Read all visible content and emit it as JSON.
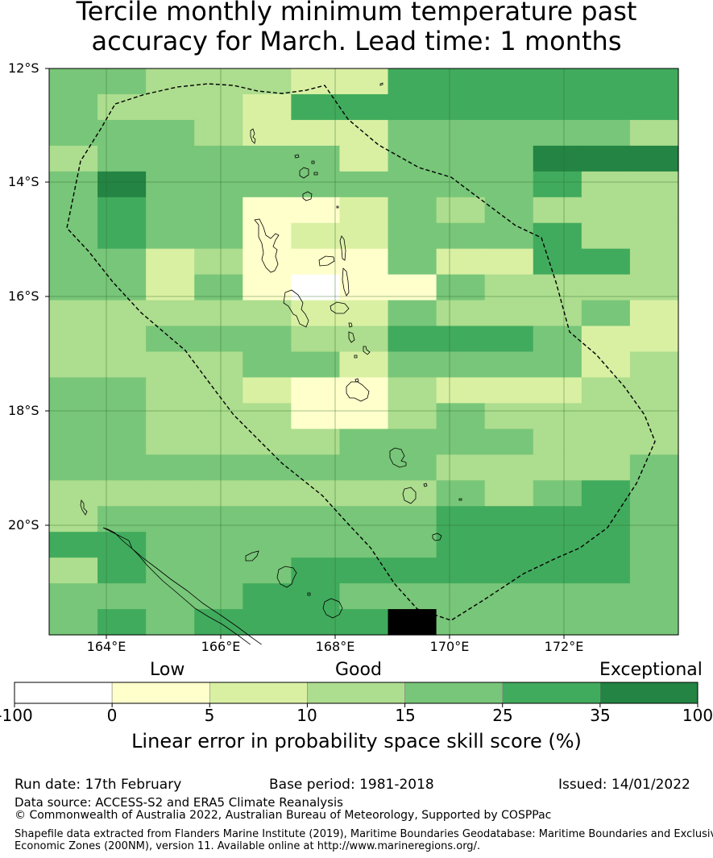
{
  "title_line1": "Tercile monthly minimum temperature past",
  "title_line2": "accuracy for March. Lead time: 1 months",
  "map": {
    "lon_labels": [
      "164°E",
      "166°E",
      "168°E",
      "170°E",
      "172°E"
    ],
    "lat_labels": [
      "12°S",
      "14°S",
      "16°S",
      "18°S",
      "20°S"
    ],
    "lon_range": [
      163.0,
      174.0
    ],
    "lat_range": [
      -21.9,
      -12.0
    ],
    "grid_cell_deg": 0.83,
    "skill_grid_legend_colors": [
      "#ffffff",
      "#ffffcc",
      "#d9f0a3",
      "#addd8e",
      "#78c679",
      "#41ab5d",
      "#238443"
    ],
    "skill_grid_rows": [
      "4433322555555",
      "4333255555555",
      "4443222444443",
      "3444442444666",
      "4644444444533",
      "4544112434333",
      "4544122444533",
      "4423111422553",
      "4424101143333",
      "3333322433342",
      "3344433555422",
      "3333442444423",
      "4433211322233",
      "4433311343333",
      "4433334444333",
      "4444444433334",
      "3333333343454",
      "3444444455554",
      "5544444455554",
      "3544455555554",
      "4444554444444",
      "4545555744444"
    ]
  },
  "legend": {
    "categories": [
      "Low",
      "Good",
      "Exceptional"
    ],
    "ticks": [
      "-100",
      "0",
      "5",
      "10",
      "15",
      "25",
      "35",
      "100"
    ],
    "bins": [
      {
        "from": -100,
        "to": 0,
        "color": "#ffffff"
      },
      {
        "from": 0,
        "to": 5,
        "color": "#ffffcc"
      },
      {
        "from": 5,
        "to": 10,
        "color": "#d9f0a3"
      },
      {
        "from": 10,
        "to": 15,
        "color": "#addd8e"
      },
      {
        "from": 15,
        "to": 25,
        "color": "#78c679"
      },
      {
        "from": 25,
        "to": 35,
        "color": "#41ab5d"
      },
      {
        "from": 35,
        "to": 100,
        "color": "#238443"
      }
    ],
    "title": "Linear error in probability space skill score (%)"
  },
  "footer": {
    "run_date": "Run date: 17th February",
    "base_period": "Base period: 1981-2018",
    "issued": "Issued: 14/01/2022",
    "data_source": "Data source: ACCESS-S2 and ERA5 Climate Reanalysis",
    "copyright": "© Commonwealth of Australia 2022, Australian Bureau of Meteorology, Supported by COSPPac",
    "shapefile_line1": "Shapefile data extracted from Flanders Marine Institute (2019), Maritime Boundaries Geodatabase: Maritime Boundaries and Exclusive",
    "shapefile_line2": "Economic Zones (200NM), version 11. Available online at http://www.marineregions.org/."
  }
}
